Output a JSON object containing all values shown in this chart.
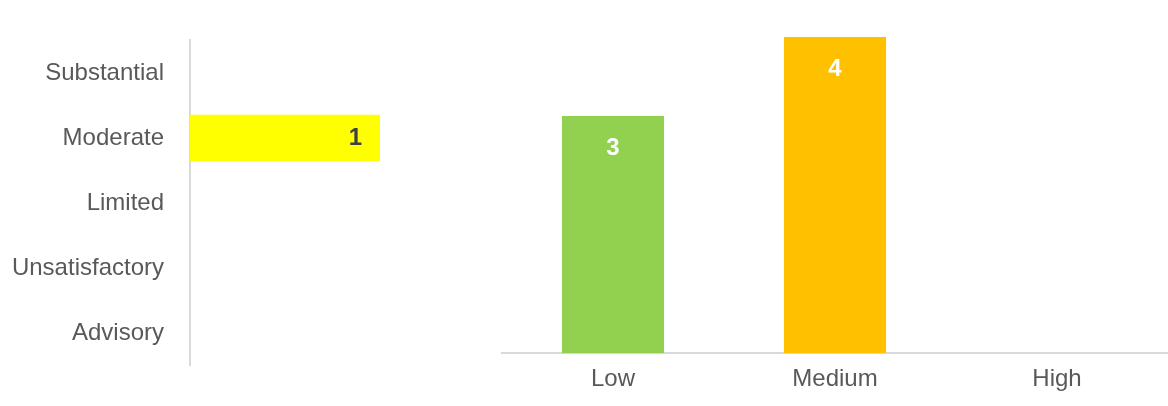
{
  "chart_data": [
    {
      "type": "bar",
      "orientation": "horizontal",
      "categories": [
        "Substantial",
        "Moderate",
        "Limited",
        "Unsatisfactory",
        "Advisory"
      ],
      "values": [
        null,
        1,
        null,
        null,
        null
      ],
      "color": "#ffff00",
      "data_labels": true,
      "grid": false,
      "legend": false,
      "tick_labels": "y"
    },
    {
      "type": "bar",
      "categories": [
        "Low",
        "Medium",
        "High"
      ],
      "values": [
        3,
        4,
        null
      ],
      "colors": [
        "#92d050",
        "#ffc000",
        null
      ],
      "data_labels": true,
      "grid": false,
      "legend": false,
      "tick_labels": "x"
    }
  ]
}
